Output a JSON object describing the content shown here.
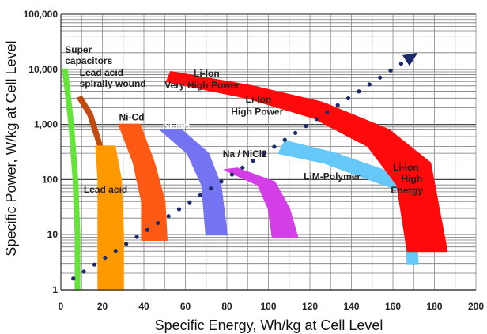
{
  "chart_data": {
    "type": "area",
    "title": "",
    "xlabel": "Specific Energy, Wh/kg at Cell Level",
    "ylabel": "Specific Power, W/kg at Cell Level",
    "xlim": [
      0,
      200
    ],
    "ylim": [
      1,
      100000
    ],
    "y_scale": "log",
    "grid": true,
    "x_ticks": [
      "0",
      "20",
      "40",
      "60",
      "80",
      "100",
      "120",
      "140",
      "160",
      "180",
      "200"
    ],
    "y_ticks": [
      {
        "value": 1,
        "label": "1"
      },
      {
        "value": 10,
        "label": "10"
      },
      {
        "value": 100,
        "label": "100"
      },
      {
        "value": 1000,
        "label": "1,000"
      },
      {
        "value": 10000,
        "label": "10,000"
      },
      {
        "value": 100000,
        "label": "100,000"
      }
    ],
    "regions": [
      {
        "name": "Super capacitors",
        "color": "#66e33a",
        "inner": [
          [
            1,
            10000
          ],
          [
            4,
            1000
          ],
          [
            6,
            100
          ],
          [
            7,
            10
          ],
          [
            7,
            1
          ]
        ],
        "outer": [
          [
            3,
            10000
          ],
          [
            6,
            1000
          ],
          [
            8,
            100
          ],
          [
            9,
            10
          ],
          [
            9,
            1
          ]
        ]
      },
      {
        "name": "Lead acid spirally wound",
        "color": "#c04a10",
        "inner": [
          [
            8,
            3000
          ],
          [
            13,
            1500
          ],
          [
            19,
            300
          ],
          [
            19,
            150
          ]
        ],
        "outer": [
          [
            10,
            3200
          ],
          [
            15,
            1600
          ],
          [
            21,
            300
          ],
          [
            21,
            150
          ]
        ]
      },
      {
        "name": "Lead acid",
        "color": "#ff9900",
        "inner": [
          [
            17,
            400
          ],
          [
            18,
            100
          ],
          [
            18,
            10
          ],
          [
            18,
            1
          ]
        ],
        "outer": [
          [
            26,
            400
          ],
          [
            29,
            100
          ],
          [
            30,
            10
          ],
          [
            30,
            1
          ]
        ]
      },
      {
        "name": "Ni-Cd",
        "color": "#ff5a14",
        "inner": [
          [
            28,
            1000
          ],
          [
            35,
            200
          ],
          [
            39,
            40
          ],
          [
            39,
            8
          ]
        ],
        "outer": [
          [
            38,
            1000
          ],
          [
            45,
            200
          ],
          [
            50,
            40
          ],
          [
            51,
            8
          ]
        ]
      },
      {
        "name": "Ni-MH",
        "color": "#7474f2",
        "inner": [
          [
            48,
            800
          ],
          [
            61,
            300
          ],
          [
            68,
            80
          ],
          [
            70,
            10
          ]
        ],
        "outer": [
          [
            58,
            800
          ],
          [
            71,
            300
          ],
          [
            77,
            80
          ],
          [
            80,
            10
          ]
        ]
      },
      {
        "name": "Na / NiCl2",
        "color": "#d43ee6",
        "inner": [
          [
            79,
            150
          ],
          [
            95,
            80
          ],
          [
            100,
            30
          ],
          [
            102,
            9
          ]
        ],
        "outer": [
          [
            85,
            160
          ],
          [
            103,
            90
          ],
          [
            110,
            30
          ],
          [
            114,
            9
          ]
        ]
      },
      {
        "name": "LiM-Polymer",
        "color": "#66c8f8",
        "inner": [
          [
            105,
            300
          ],
          [
            127,
            200
          ],
          [
            149,
            100
          ],
          [
            165,
            60
          ],
          [
            167,
            3
          ]
        ],
        "outer": [
          [
            108,
            500
          ],
          [
            132,
            300
          ],
          [
            155,
            150
          ],
          [
            170,
            80
          ],
          [
            172,
            3
          ]
        ]
      },
      {
        "name": "Li-Ion Very High Power",
        "color": "#ff0a0a",
        "inner": [
          [
            51,
            6000
          ],
          [
            90,
            3000
          ],
          [
            122,
            1300
          ],
          [
            148,
            400
          ],
          [
            162,
            80
          ],
          [
            167,
            5
          ]
        ],
        "outer": [
          [
            53,
            9000
          ],
          [
            92,
            5000
          ],
          [
            126,
            2500
          ],
          [
            158,
            800
          ],
          [
            178,
            200
          ],
          [
            186,
            5
          ]
        ]
      }
    ],
    "trend": {
      "x": [
        6,
        172
      ],
      "y": [
        1.6,
        20000
      ],
      "style": "dotted",
      "color": "#1a2a6c"
    },
    "annotations": [
      {
        "text": "Super",
        "x": 2,
        "y": 20000,
        "style": "dark"
      },
      {
        "text": "capacitors",
        "x": 2,
        "y": 12500,
        "style": "dark"
      },
      {
        "text": "Lead acid",
        "x": 9,
        "y": 7600,
        "style": "dark"
      },
      {
        "text": "spirally wound",
        "x": 9,
        "y": 4800,
        "style": "dark"
      },
      {
        "text": "Li-Ion",
        "x": 64,
        "y": 7400,
        "style": "dark"
      },
      {
        "text": "Very High Power",
        "x": 50,
        "y": 4500,
        "style": "dark"
      },
      {
        "text": "Li-Ion",
        "x": 89,
        "y": 2500,
        "style": "dark"
      },
      {
        "text": "High Power",
        "x": 82,
        "y": 1500,
        "style": "dark"
      },
      {
        "text": "Ni-Cd",
        "x": 28,
        "y": 1180,
        "style": "dark"
      },
      {
        "text": "Ni-MH",
        "x": 49,
        "y": 860,
        "style": "white"
      },
      {
        "text": "Na / NiCl2",
        "x": 78,
        "y": 255,
        "style": "dark"
      },
      {
        "text": "LiM-Polymer",
        "x": 117,
        "y": 100,
        "style": "dark"
      },
      {
        "text": "Li-ion",
        "x": 160,
        "y": 145,
        "style": "dark"
      },
      {
        "text": "High",
        "x": 164,
        "y": 90,
        "style": "dark"
      },
      {
        "text": "Energy",
        "x": 159,
        "y": 56,
        "style": "dark"
      },
      {
        "text": "Lead acid",
        "x": 11,
        "y": 58,
        "style": "dark"
      }
    ]
  }
}
